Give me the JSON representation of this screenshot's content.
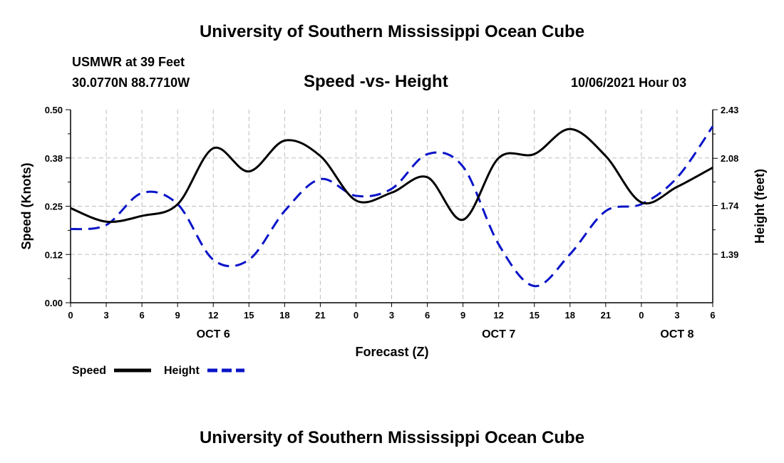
{
  "header": {
    "title_top": "University of Southern Mississippi Ocean Cube",
    "station": "USMWR at 39 Feet",
    "coords": "30.0770N  88.7710W",
    "chart_title": "Speed -vs- Height",
    "datetime": "10/06/2021 Hour 03"
  },
  "footer": {
    "title_bottom": "University of Southern Mississippi Ocean Cube"
  },
  "colors": {
    "speed": "#000000",
    "height": "#0a14c8",
    "grid": "#bdbdbd"
  },
  "chart_data": {
    "type": "line",
    "title": "Speed -vs- Height",
    "xlabel": "Forecast (Z)",
    "ylabel": "Speed (Knots)",
    "ylabel_right": "Height (feet)",
    "x_hours_range": [
      0,
      54
    ],
    "x_ticks": [
      {
        "h": 0,
        "label": "0"
      },
      {
        "h": 3,
        "label": "3"
      },
      {
        "h": 6,
        "label": "6"
      },
      {
        "h": 9,
        "label": "9"
      },
      {
        "h": 12,
        "label": "12"
      },
      {
        "h": 15,
        "label": "15"
      },
      {
        "h": 18,
        "label": "18"
      },
      {
        "h": 21,
        "label": "21"
      },
      {
        "h": 24,
        "label": "0"
      },
      {
        "h": 27,
        "label": "3"
      },
      {
        "h": 30,
        "label": "6"
      },
      {
        "h": 33,
        "label": "9"
      },
      {
        "h": 36,
        "label": "12"
      },
      {
        "h": 39,
        "label": "15"
      },
      {
        "h": 42,
        "label": "18"
      },
      {
        "h": 45,
        "label": "21"
      },
      {
        "h": 48,
        "label": "0"
      },
      {
        "h": 51,
        "label": "3"
      },
      {
        "h": 54,
        "label": "6"
      }
    ],
    "date_labels": [
      {
        "h": 12,
        "label": "OCT 6"
      },
      {
        "h": 36,
        "label": "OCT 7"
      },
      {
        "h": 51,
        "label": "OCT 8"
      }
    ],
    "ylim_left": [
      0,
      0.5
    ],
    "y_ticks_left": [
      {
        "v": 0.0,
        "label": "0.00"
      },
      {
        "v": 0.125,
        "label": "0.12"
      },
      {
        "v": 0.25,
        "label": "0.25"
      },
      {
        "v": 0.375,
        "label": "0.38"
      },
      {
        "v": 0.5,
        "label": "0.50"
      }
    ],
    "ylim_right": [
      1.04,
      2.43
    ],
    "y_ticks_right": [
      {
        "v": 1.39,
        "label": "1.39"
      },
      {
        "v": 1.74,
        "label": "1.74"
      },
      {
        "v": 2.08,
        "label": "2.08"
      },
      {
        "v": 2.43,
        "label": "2.43"
      }
    ],
    "series": [
      {
        "name": "Speed",
        "axis": "left",
        "style": "solid",
        "x": [
          0,
          3,
          6,
          9,
          12,
          15,
          18,
          21,
          24,
          27,
          30,
          33,
          36,
          39,
          42,
          45,
          48,
          51,
          54
        ],
        "values": [
          0.245,
          0.21,
          0.225,
          0.255,
          0.4,
          0.34,
          0.42,
          0.38,
          0.265,
          0.285,
          0.325,
          0.215,
          0.375,
          0.385,
          0.45,
          0.38,
          0.26,
          0.3,
          0.35
        ]
      },
      {
        "name": "Height",
        "axis": "right",
        "style": "dashed",
        "x": [
          0,
          3,
          6,
          9,
          12,
          15,
          18,
          21,
          24,
          27,
          30,
          33,
          36,
          39,
          42,
          45,
          48,
          51,
          54
        ],
        "values": [
          1.57,
          1.6,
          1.83,
          1.75,
          1.35,
          1.35,
          1.7,
          1.93,
          1.81,
          1.86,
          2.11,
          2.02,
          1.46,
          1.16,
          1.39,
          1.7,
          1.75,
          1.94,
          2.31
        ]
      }
    ],
    "legend": [
      {
        "name": "Speed",
        "style": "solid"
      },
      {
        "name": "Height",
        "style": "dashed"
      }
    ]
  }
}
